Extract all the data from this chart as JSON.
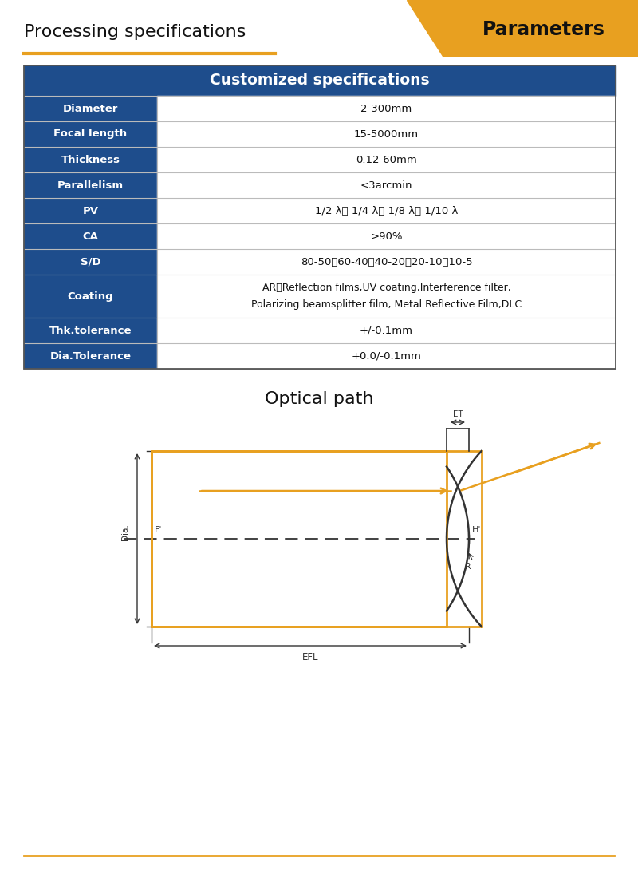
{
  "title_left": "Processing specifications",
  "title_right": "Parameters",
  "title_right_bg": "#E8A020",
  "table_header": "Customized specifications",
  "table_header_bg": "#1E4D8C",
  "table_header_fg": "#FFFFFF",
  "row_label_bg": "#1E4D8C",
  "row_label_fg": "#FFFFFF",
  "row_value_bg": "#FFFFFF",
  "row_value_fg": "#111111",
  "border_color": "#BBBBBB",
  "rows": [
    [
      "Diameter",
      "2-300mm"
    ],
    [
      "Focal length",
      "15-5000mm"
    ],
    [
      "Thickness",
      "0.12-60mm"
    ],
    [
      "Parallelism",
      "<3arcmin"
    ],
    [
      "PV",
      "1/2 λ、 1/4 λ、 1/8 λ、 1/10 λ"
    ],
    [
      "CA",
      ">90%"
    ],
    [
      "S/D",
      "80-50、60-40、40-20、20-10、10-5"
    ],
    [
      "Coating",
      "AR、Reflection films,UV coating,Interference filter,\nPolarizing beamsplitter film, Metal Reflective Film,DLC"
    ],
    [
      "Thk.tolerance",
      "+/-0.1mm"
    ],
    [
      "Dia.Tolerance",
      "+0.0/-0.1mm"
    ]
  ],
  "optical_path_title": "Optical path",
  "gold_color": "#E8A020",
  "dark_color": "#333333",
  "footer_line_color": "#E8A020"
}
